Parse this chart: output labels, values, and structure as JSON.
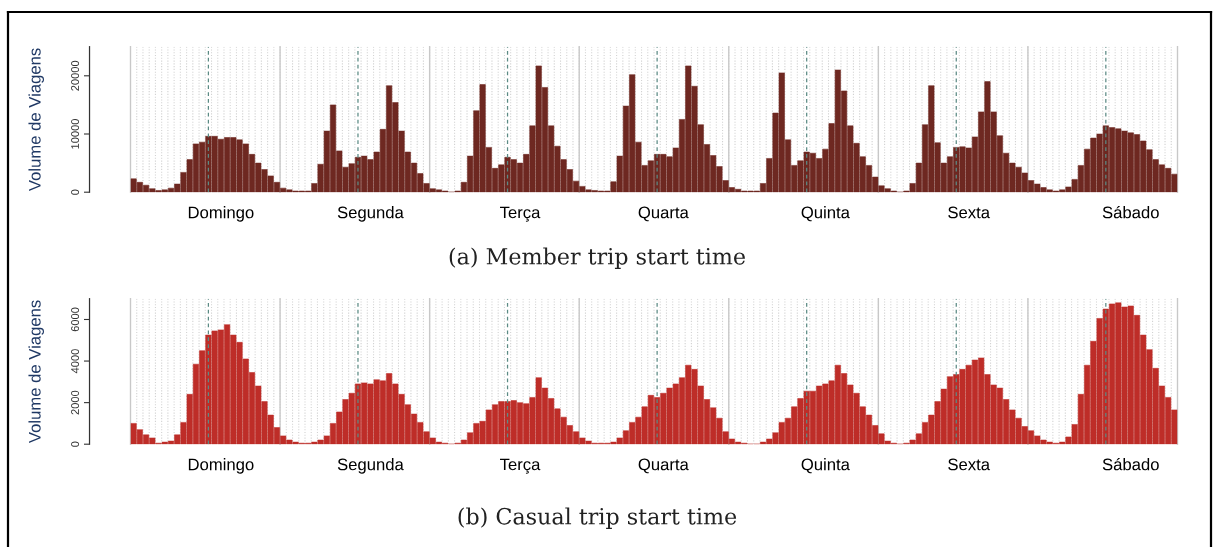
{
  "chart_data": [
    {
      "type": "bar",
      "title": "(a) Member trip start time",
      "ylabel": "Volume de Viagens",
      "color": "#6e2821",
      "categories": [
        null,
        null,
        null,
        null,
        null,
        null,
        null,
        null,
        null,
        null,
        null,
        null,
        null,
        null,
        "Domingo",
        null,
        null,
        null,
        null,
        null,
        null,
        null,
        null,
        null,
        null,
        null,
        null,
        null,
        null,
        null,
        null,
        null,
        null,
        null,
        null,
        null,
        null,
        null,
        "Segunda",
        null,
        null,
        null,
        null,
        null,
        null,
        null,
        null,
        null,
        null,
        null,
        null,
        null,
        null,
        null,
        null,
        null,
        null,
        null,
        null,
        null,
        null,
        null,
        "Terça",
        null,
        null,
        null,
        null,
        null,
        null,
        null,
        null,
        null,
        null,
        null,
        null,
        null,
        null,
        null,
        null,
        null,
        null,
        null,
        null,
        null,
        null,
        "Quarta",
        null,
        null,
        null,
        null,
        null,
        null,
        null,
        null,
        null,
        null,
        null,
        null,
        null,
        null,
        null,
        null,
        null,
        null,
        null,
        null,
        null,
        null,
        null,
        null,
        null,
        "Quinta",
        null,
        null,
        null,
        null,
        null,
        null,
        null,
        null,
        null,
        null,
        null,
        null,
        null,
        null,
        null,
        null,
        null,
        null,
        null,
        null,
        null,
        null,
        "Sexta",
        null,
        null,
        null,
        null,
        null,
        null,
        null,
        null,
        null,
        null,
        null,
        null,
        null,
        null,
        null,
        null,
        null,
        null,
        null,
        null,
        null,
        null,
        null,
        null,
        null,
        "Sábado",
        null,
        null,
        null,
        null,
        null,
        null,
        null
      ],
      "values": [
        2300,
        1700,
        1200,
        600,
        300,
        400,
        700,
        1400,
        3400,
        5600,
        8300,
        8600,
        9600,
        9600,
        9100,
        9400,
        9400,
        9000,
        8300,
        6500,
        5000,
        3900,
        2800,
        1700,
        700,
        400,
        200,
        200,
        200,
        1500,
        4800,
        10500,
        15000,
        7100,
        4300,
        4900,
        6000,
        6200,
        5600,
        6900,
        10800,
        18300,
        15400,
        10500,
        6900,
        5000,
        3200,
        1500,
        600,
        400,
        200,
        0,
        200,
        1700,
        6200,
        14000,
        18500,
        7700,
        4100,
        4700,
        6000,
        5600,
        5000,
        6500,
        11400,
        21700,
        18000,
        11400,
        7900,
        5600,
        3900,
        1900,
        1000,
        400,
        300,
        200,
        200,
        1800,
        6200,
        14800,
        20200,
        8600,
        4600,
        5400,
        6500,
        6500,
        6100,
        7600,
        12500,
        21700,
        18200,
        11600,
        8200,
        6300,
        4400,
        2000,
        800,
        500,
        200,
        200,
        200,
        1500,
        5800,
        13600,
        20500,
        9000,
        4600,
        5400,
        6900,
        6700,
        5800,
        7400,
        11800,
        21000,
        17400,
        11400,
        8400,
        6100,
        4600,
        2600,
        1100,
        600,
        200,
        0,
        200,
        1500,
        5000,
        11600,
        18300,
        8500,
        5000,
        6100,
        7700,
        7800,
        7600,
        9500,
        13800,
        19000,
        13800,
        9700,
        6700,
        5000,
        4300,
        3300,
        2000,
        1400,
        800,
        400,
        200,
        400,
        900,
        2200,
        4600,
        7400,
        9300,
        10000,
        11400,
        11100,
        10900,
        10500,
        10200,
        9900,
        8800,
        7300,
        5600,
        4700,
        4100,
        3100
      ],
      "ylim": [
        0,
        25000
      ],
      "yticks": [
        0,
        10000,
        20000
      ],
      "grid": "x"
    },
    {
      "type": "bar",
      "title": "(b) Casual trip start time",
      "ylabel": "Volume de Viagens",
      "color": "#be2d28",
      "categories": [
        null,
        null,
        null,
        null,
        null,
        null,
        null,
        null,
        null,
        null,
        null,
        null,
        null,
        null,
        "Domingo",
        null,
        null,
        null,
        null,
        null,
        null,
        null,
        null,
        null,
        null,
        null,
        null,
        null,
        null,
        null,
        null,
        null,
        null,
        null,
        null,
        null,
        null,
        null,
        "Segunda",
        null,
        null,
        null,
        null,
        null,
        null,
        null,
        null,
        null,
        null,
        null,
        null,
        null,
        null,
        null,
        null,
        null,
        null,
        null,
        null,
        null,
        null,
        null,
        "Terça",
        null,
        null,
        null,
        null,
        null,
        null,
        null,
        null,
        null,
        null,
        null,
        null,
        null,
        null,
        null,
        null,
        null,
        null,
        null,
        null,
        null,
        null,
        "Quarta",
        null,
        null,
        null,
        null,
        null,
        null,
        null,
        null,
        null,
        null,
        null,
        null,
        null,
        null,
        null,
        null,
        null,
        null,
        null,
        null,
        null,
        null,
        null,
        null,
        null,
        "Quinta",
        null,
        null,
        null,
        null,
        null,
        null,
        null,
        null,
        null,
        null,
        null,
        null,
        null,
        null,
        null,
        null,
        null,
        null,
        null,
        null,
        null,
        null,
        "Sexta",
        null,
        null,
        null,
        null,
        null,
        null,
        null,
        null,
        null,
        null,
        null,
        null,
        null,
        null,
        null,
        null,
        null,
        null,
        null,
        null,
        null,
        null,
        null,
        null,
        null,
        "Sábado",
        null,
        null,
        null,
        null,
        null,
        null,
        null
      ],
      "values": [
        1000,
        700,
        450,
        300,
        50,
        100,
        150,
        450,
        1050,
        2400,
        3850,
        4500,
        5250,
        5450,
        5500,
        5750,
        5250,
        4900,
        4100,
        3450,
        2800,
        2050,
        1400,
        800,
        400,
        200,
        100,
        50,
        50,
        100,
        200,
        400,
        1000,
        1550,
        2150,
        2450,
        2900,
        2950,
        2900,
        3100,
        3050,
        3400,
        2900,
        2400,
        1900,
        1450,
        1050,
        600,
        300,
        100,
        50,
        0,
        50,
        200,
        550,
        1000,
        1100,
        1650,
        1900,
        2050,
        2050,
        2100,
        2000,
        1950,
        2250,
        3200,
        2700,
        2200,
        1700,
        1300,
        900,
        600,
        300,
        150,
        50,
        50,
        50,
        100,
        300,
        650,
        1050,
        1300,
        1800,
        2350,
        2250,
        2450,
        2700,
        2900,
        3200,
        3800,
        3600,
        2800,
        2150,
        1750,
        1250,
        600,
        250,
        100,
        50,
        0,
        0,
        100,
        250,
        550,
        1050,
        1250,
        1800,
        2200,
        2550,
        2550,
        2800,
        2900,
        3050,
        3800,
        3400,
        2850,
        2450,
        1800,
        1400,
        900,
        500,
        150,
        50,
        0,
        50,
        200,
        500,
        1050,
        1400,
        2050,
        2650,
        3250,
        3350,
        3600,
        3800,
        4050,
        4150,
        3350,
        2850,
        2700,
        2150,
        1650,
        1250,
        850,
        650,
        400,
        200,
        100,
        50,
        100,
        350,
        950,
        2400,
        3800,
        4950,
        6050,
        6500,
        6750,
        6800,
        6600,
        6650,
        6200,
        5250,
        4550,
        3650,
        2800,
        2250,
        1650
      ],
      "ylim": [
        0,
        7000
      ],
      "yticks": [
        0,
        2000,
        4000,
        6000
      ],
      "grid": "x"
    }
  ]
}
